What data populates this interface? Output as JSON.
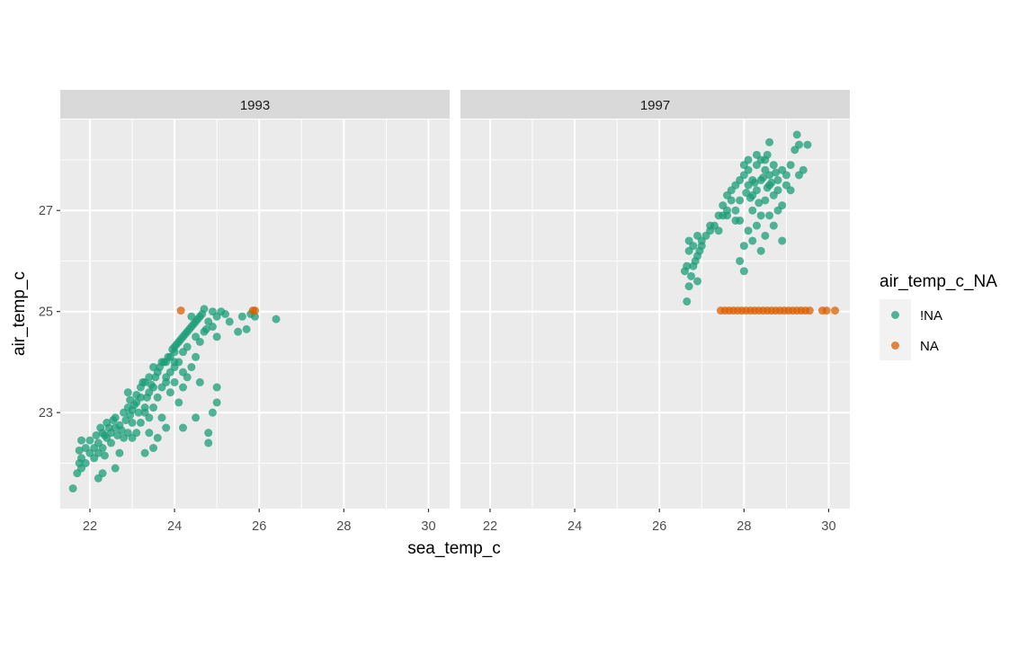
{
  "chart_data": {
    "type": "scatter",
    "facets": [
      {
        "label": "1993"
      },
      {
        "label": "1997"
      }
    ],
    "xlabel": "sea_temp_c",
    "ylabel": "air_temp_c",
    "x_ticks": [
      22,
      24,
      26,
      28,
      30
    ],
    "y_ticks": [
      23,
      25,
      27
    ],
    "xlim": [
      21.3,
      30.5
    ],
    "ylim": [
      21.1,
      28.8
    ],
    "grid": true,
    "legend": {
      "title": "air_temp_c_NA",
      "position": "right",
      "entries": [
        {
          "key": "!NA",
          "label": "!NA",
          "color": "#1b9e77"
        },
        {
          "key": "NA",
          "label": "NA",
          "color": "#d95f02"
        }
      ]
    },
    "series": [
      {
        "name": "!NA",
        "facet": "1993",
        "points": [
          [
            21.6,
            21.5
          ],
          [
            21.7,
            21.8
          ],
          [
            21.75,
            22.0
          ],
          [
            21.8,
            22.1
          ],
          [
            21.75,
            22.25
          ],
          [
            21.8,
            22.45
          ],
          [
            21.9,
            22.3
          ],
          [
            22.0,
            22.45
          ],
          [
            21.8,
            21.9
          ],
          [
            21.9,
            22.0
          ],
          [
            22.0,
            22.2
          ],
          [
            22.1,
            22.1
          ],
          [
            22.2,
            22.2
          ],
          [
            22.1,
            22.3
          ],
          [
            22.2,
            22.4
          ],
          [
            22.3,
            22.3
          ],
          [
            22.35,
            22.15
          ],
          [
            22.4,
            22.5
          ],
          [
            22.3,
            22.6
          ],
          [
            22.5,
            22.6
          ],
          [
            22.5,
            22.4
          ],
          [
            22.6,
            22.7
          ],
          [
            22.4,
            22.8
          ],
          [
            22.2,
            21.7
          ],
          [
            22.3,
            21.8
          ],
          [
            22.6,
            21.9
          ],
          [
            22.7,
            22.2
          ],
          [
            22.8,
            22.5
          ],
          [
            22.6,
            22.9
          ],
          [
            22.7,
            22.75
          ],
          [
            22.8,
            23.0
          ],
          [
            22.9,
            23.1
          ],
          [
            23.0,
            22.8
          ],
          [
            22.9,
            22.6
          ],
          [
            23.0,
            22.5
          ],
          [
            23.1,
            23.2
          ],
          [
            23.0,
            23.05
          ],
          [
            23.2,
            23.3
          ],
          [
            23.3,
            23.1
          ],
          [
            23.4,
            23.4
          ],
          [
            23.2,
            23.5
          ],
          [
            23.3,
            23.6
          ],
          [
            23.5,
            23.5
          ],
          [
            23.4,
            23.7
          ],
          [
            23.6,
            23.8
          ],
          [
            23.5,
            23.9
          ],
          [
            23.7,
            24.0
          ],
          [
            23.8,
            23.7
          ],
          [
            23.9,
            24.1
          ],
          [
            24.0,
            24.2
          ],
          [
            23.8,
            24.0
          ],
          [
            24.1,
            24.4
          ],
          [
            24.0,
            24.3
          ],
          [
            24.2,
            24.5
          ],
          [
            24.3,
            24.6
          ],
          [
            24.4,
            24.7
          ],
          [
            24.5,
            24.8
          ],
          [
            24.6,
            24.9
          ],
          [
            24.5,
            24.5
          ],
          [
            24.7,
            24.6
          ],
          [
            24.8,
            24.8
          ],
          [
            24.6,
            24.4
          ],
          [
            24.9,
            24.7
          ],
          [
            25.0,
            24.9
          ],
          [
            25.1,
            25.0
          ],
          [
            24.9,
            25.0
          ],
          [
            25.0,
            24.5
          ],
          [
            23.1,
            22.6
          ],
          [
            23.2,
            22.8
          ],
          [
            23.3,
            23.0
          ],
          [
            23.4,
            22.9
          ],
          [
            23.5,
            23.1
          ],
          [
            23.6,
            23.3
          ],
          [
            23.7,
            23.5
          ],
          [
            23.8,
            23.6
          ],
          [
            23.9,
            23.8
          ],
          [
            24.0,
            23.9
          ],
          [
            24.1,
            24.0
          ],
          [
            24.2,
            24.2
          ],
          [
            23.4,
            22.6
          ],
          [
            23.5,
            22.3
          ],
          [
            23.6,
            22.5
          ],
          [
            23.7,
            22.9
          ],
          [
            23.8,
            22.7
          ],
          [
            23.9,
            23.4
          ],
          [
            24.0,
            23.6
          ],
          [
            24.1,
            23.2
          ],
          [
            24.2,
            23.5
          ],
          [
            24.3,
            23.7
          ],
          [
            24.4,
            23.9
          ],
          [
            24.5,
            24.1
          ],
          [
            24.3,
            24.3
          ],
          [
            24.2,
            23.8
          ],
          [
            24.0,
            24.0
          ],
          [
            23.3,
            22.2
          ],
          [
            24.2,
            22.7
          ],
          [
            24.5,
            22.9
          ],
          [
            24.8,
            22.6
          ],
          [
            24.8,
            22.4
          ],
          [
            24.9,
            23.0
          ],
          [
            25.0,
            23.2
          ],
          [
            25.0,
            23.5
          ],
          [
            24.6,
            23.6
          ],
          [
            25.6,
            24.9
          ],
          [
            25.8,
            24.95
          ],
          [
            25.9,
            24.9
          ],
          [
            26.4,
            24.85
          ],
          [
            25.7,
            24.65
          ],
          [
            25.5,
            24.6
          ],
          [
            25.3,
            24.8
          ],
          [
            25.2,
            24.95
          ],
          [
            24.7,
            25.05
          ],
          [
            24.4,
            24.9
          ],
          [
            22.9,
            23.4
          ],
          [
            22.95,
            23.25
          ],
          [
            23.1,
            23.35
          ],
          [
            23.25,
            23.6
          ],
          [
            23.15,
            23.0
          ],
          [
            23.35,
            23.3
          ],
          [
            23.45,
            23.55
          ],
          [
            23.55,
            23.7
          ],
          [
            23.65,
            23.9
          ],
          [
            23.75,
            24.0
          ],
          [
            23.85,
            24.1
          ],
          [
            23.95,
            24.25
          ],
          [
            24.05,
            24.35
          ],
          [
            24.15,
            24.45
          ],
          [
            24.25,
            24.55
          ],
          [
            24.35,
            24.65
          ],
          [
            24.45,
            24.75
          ],
          [
            24.55,
            24.85
          ],
          [
            24.65,
            24.95
          ],
          [
            24.75,
            24.65
          ],
          [
            22.45,
            22.7
          ],
          [
            22.55,
            22.85
          ],
          [
            22.65,
            22.55
          ],
          [
            22.75,
            22.65
          ],
          [
            22.85,
            22.85
          ],
          [
            22.95,
            22.95
          ],
          [
            23.05,
            23.15
          ],
          [
            22.35,
            22.55
          ],
          [
            22.25,
            22.7
          ],
          [
            22.15,
            22.55
          ]
        ]
      },
      {
        "name": "NA",
        "facet": "1993",
        "points": [
          [
            24.15,
            25.02
          ],
          [
            25.9,
            25.02
          ],
          [
            25.85,
            25.02
          ]
        ]
      },
      {
        "name": "!NA",
        "facet": "1997",
        "points": [
          [
            26.6,
            25.8
          ],
          [
            26.7,
            25.5
          ],
          [
            26.65,
            25.2
          ],
          [
            26.8,
            25.9
          ],
          [
            26.7,
            26.2
          ],
          [
            26.8,
            26.3
          ],
          [
            26.9,
            26.1
          ],
          [
            26.85,
            26.0
          ],
          [
            26.9,
            25.6
          ],
          [
            27.0,
            26.4
          ],
          [
            26.95,
            26.2
          ],
          [
            27.1,
            26.5
          ],
          [
            27.2,
            26.6
          ],
          [
            27.3,
            26.7
          ],
          [
            27.4,
            26.6
          ],
          [
            27.5,
            26.9
          ],
          [
            27.5,
            27.1
          ],
          [
            27.6,
            27.0
          ],
          [
            27.6,
            27.3
          ],
          [
            27.7,
            27.4
          ],
          [
            27.7,
            27.2
          ],
          [
            27.8,
            27.5
          ],
          [
            27.8,
            27.0
          ],
          [
            27.9,
            26.8
          ],
          [
            27.9,
            27.6
          ],
          [
            28.0,
            27.7
          ],
          [
            28.0,
            27.9
          ],
          [
            28.1,
            27.8
          ],
          [
            28.1,
            27.5
          ],
          [
            28.2,
            27.6
          ],
          [
            28.2,
            27.3
          ],
          [
            28.3,
            27.4
          ],
          [
            28.3,
            27.9
          ],
          [
            28.4,
            28.0
          ],
          [
            28.4,
            27.6
          ],
          [
            28.5,
            27.8
          ],
          [
            28.5,
            27.2
          ],
          [
            28.6,
            27.5
          ],
          [
            28.6,
            27.7
          ],
          [
            28.7,
            27.9
          ],
          [
            28.7,
            27.3
          ],
          [
            28.8,
            27.6
          ],
          [
            28.8,
            27.4
          ],
          [
            28.9,
            27.8
          ],
          [
            28.9,
            27.1
          ],
          [
            29.0,
            27.5
          ],
          [
            29.0,
            27.7
          ],
          [
            29.1,
            27.9
          ],
          [
            29.2,
            28.2
          ],
          [
            29.3,
            28.3
          ],
          [
            29.5,
            28.3
          ],
          [
            29.25,
            28.5
          ],
          [
            28.6,
            28.35
          ],
          [
            28.55,
            28.1
          ],
          [
            27.9,
            26.0
          ],
          [
            28.0,
            25.8
          ],
          [
            28.0,
            26.3
          ],
          [
            28.1,
            26.6
          ],
          [
            28.2,
            26.4
          ],
          [
            28.3,
            26.7
          ],
          [
            28.4,
            26.2
          ],
          [
            28.5,
            26.5
          ],
          [
            28.6,
            26.9
          ],
          [
            28.7,
            26.7
          ],
          [
            28.9,
            26.4
          ],
          [
            28.2,
            27.0
          ],
          [
            28.4,
            26.9
          ],
          [
            28.8,
            27.0
          ],
          [
            29.1,
            27.4
          ],
          [
            29.3,
            27.7
          ],
          [
            29.4,
            27.8
          ],
          [
            27.9,
            27.2
          ],
          [
            27.8,
            26.8
          ],
          [
            27.6,
            26.9
          ],
          [
            27.4,
            26.9
          ],
          [
            27.2,
            26.7
          ],
          [
            27.0,
            26.3
          ],
          [
            26.9,
            26.5
          ],
          [
            26.7,
            26.4
          ],
          [
            26.65,
            25.9
          ],
          [
            26.75,
            25.7
          ],
          [
            28.1,
            28.0
          ],
          [
            28.3,
            28.1
          ],
          [
            28.5,
            28.0
          ],
          [
            28.25,
            27.55
          ],
          [
            28.45,
            27.65
          ],
          [
            28.65,
            27.55
          ],
          [
            28.35,
            27.15
          ],
          [
            28.15,
            27.25
          ],
          [
            28.55,
            27.45
          ],
          [
            28.75,
            27.75
          ],
          [
            28.05,
            27.35
          ]
        ]
      },
      {
        "name": "NA",
        "facet": "1997",
        "points": [
          [
            27.45,
            25.02
          ],
          [
            27.55,
            25.02
          ],
          [
            27.65,
            25.02
          ],
          [
            27.75,
            25.02
          ],
          [
            27.85,
            25.02
          ],
          [
            27.95,
            25.02
          ],
          [
            28.05,
            25.02
          ],
          [
            28.15,
            25.02
          ],
          [
            28.25,
            25.02
          ],
          [
            28.35,
            25.02
          ],
          [
            28.45,
            25.02
          ],
          [
            28.55,
            25.02
          ],
          [
            28.65,
            25.02
          ],
          [
            28.75,
            25.02
          ],
          [
            28.85,
            25.02
          ],
          [
            28.95,
            25.02
          ],
          [
            29.05,
            25.02
          ],
          [
            29.15,
            25.02
          ],
          [
            29.25,
            25.02
          ],
          [
            29.35,
            25.02
          ],
          [
            29.45,
            25.02
          ],
          [
            29.55,
            25.02
          ],
          [
            29.85,
            25.02
          ],
          [
            29.95,
            25.02
          ],
          [
            30.15,
            25.02
          ]
        ]
      }
    ]
  }
}
